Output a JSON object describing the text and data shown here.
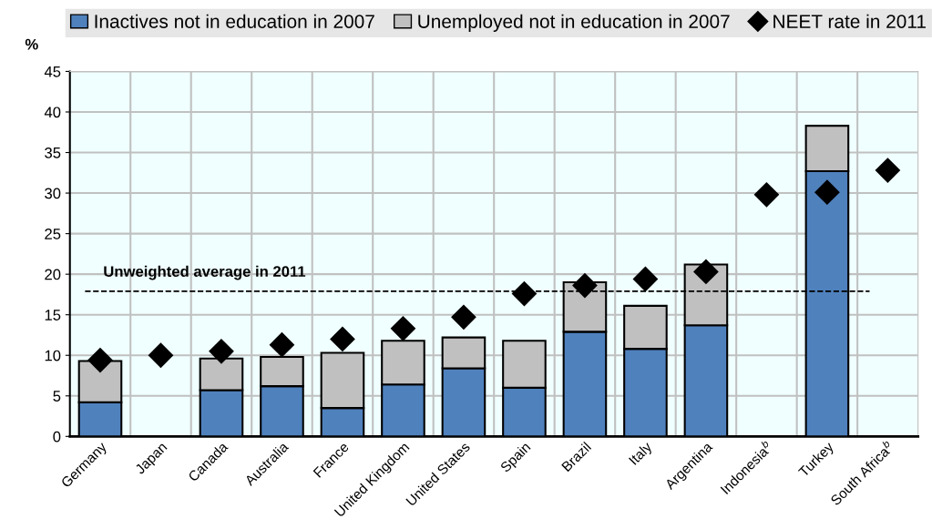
{
  "chart_data": {
    "type": "bar",
    "stacked": true,
    "ylabel": "%",
    "categories": [
      "Germany",
      "Japan",
      "Canada",
      "Australia",
      "France",
      "United Kingdom",
      "United States",
      "Spain",
      "Brazil",
      "Italy",
      "Argentina",
      "Indonesia$^{b}$",
      "Turkey",
      "South Africa$^{b}$"
    ],
    "series": [
      {
        "name": "Inactives not in education in 2007",
        "color": "#4f81bd",
        "values": [
          4.2,
          null,
          5.7,
          6.2,
          3.5,
          6.4,
          8.4,
          6.0,
          12.9,
          10.8,
          13.7,
          null,
          32.7,
          null
        ]
      },
      {
        "name": "Unemployed not in education in 2007",
        "color": "#c0c0c0",
        "values": [
          5.1,
          null,
          3.9,
          3.6,
          6.8,
          5.4,
          3.8,
          5.8,
          6.1,
          5.3,
          7.5,
          null,
          5.6,
          null
        ]
      },
      {
        "name": "NEET rate in 2011",
        "type": "scatter",
        "marker": "diamond",
        "color": "#000000",
        "x": [
          "Germany",
          "Japan",
          "Canada",
          "Australia",
          "France",
          "United Kingdom",
          "United States",
          "Spain",
          "Brazil",
          "Italy",
          "Argentina",
          "Indonesia$^{b}$",
          "Turkey",
          "South Africa$^{b}$"
        ],
        "values": [
          9.4,
          10.0,
          10.5,
          11.3,
          12.0,
          13.3,
          14.7,
          17.6,
          18.6,
          19.4,
          20.3,
          29.8,
          30.1,
          32.8
        ]
      }
    ],
    "ref_lines": [
      {
        "axis": "y",
        "value": 17.9,
        "label": "Unweighted average in 2011",
        "color": "#000000",
        "line_style": "dashed"
      }
    ],
    "ylim": [
      0,
      45
    ],
    "yticks": [
      0,
      5,
      10,
      15,
      20,
      25,
      30,
      35,
      40,
      45
    ],
    "grid": true,
    "legend": "top"
  }
}
